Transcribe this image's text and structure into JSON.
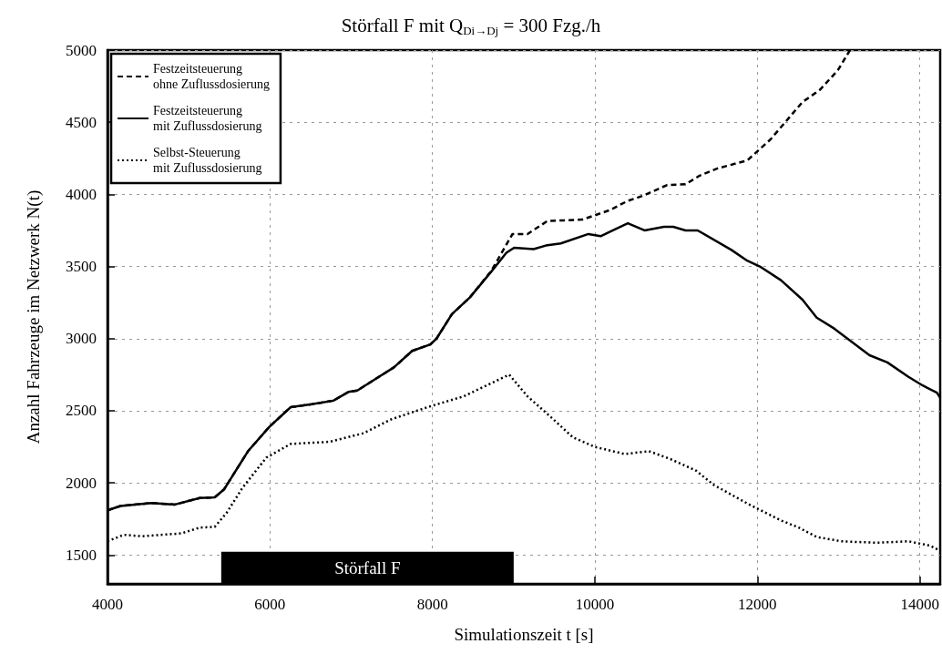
{
  "chart_data": {
    "type": "line",
    "title": "Störfall F mit Q$_{Di→Dj}$ = 300 Fzg./h",
    "xlabel": "Simulationszeit t [s]",
    "ylabel": "Anzahl Fahrzeuge im Netzwerk N(t)",
    "xlim": [
      4000,
      14250
    ],
    "xticks": [
      4000,
      6000,
      8000,
      10000,
      12000,
      14000
    ],
    "ylim": [
      1300,
      5000
    ],
    "yticks": [
      1500,
      2000,
      2500,
      3000,
      3500,
      4000,
      4500,
      5000
    ],
    "grid": true,
    "legend": "top left",
    "marker": "none",
    "bands": [
      {
        "axis": "x",
        "from": 5400,
        "to": 9000,
        "label": "Störfall F",
        "color": "#000000"
      }
    ],
    "series": [
      {
        "name": "Festzeitsteuerung\nohne Zuflussdosierung",
        "color": "#000000",
        "line_style": "dashed",
        "x": [
          4000,
          4160,
          4540,
          4830,
          5135,
          5320,
          5435,
          5730,
          5995,
          6255,
          6515,
          6780,
          6965,
          7075,
          7340,
          7525,
          7750,
          7975,
          8050,
          8240,
          8460,
          8725,
          8985,
          9170,
          9415,
          9620,
          9845,
          10180,
          10405,
          10590,
          10890,
          11115,
          11290,
          11510,
          11875,
          12160,
          12555,
          12770,
          12990,
          13140
        ],
        "values": [
          1810,
          1840,
          1860,
          1850,
          1895,
          1900,
          1955,
          2220,
          2390,
          2525,
          2545,
          2570,
          2630,
          2640,
          2735,
          2800,
          2915,
          2960,
          3000,
          3170,
          3285,
          3470,
          3725,
          3725,
          3815,
          3820,
          3825,
          3890,
          3955,
          3990,
          4065,
          4070,
          4130,
          4180,
          4235,
          4380,
          4640,
          4725,
          4860,
          5000
        ]
      },
      {
        "name": "Festzeitsteuerung\nmit Zuflussdosierung",
        "color": "#000000",
        "line_style": "solid",
        "x": [
          4000,
          4160,
          4540,
          4830,
          5135,
          5320,
          5435,
          5730,
          5995,
          6255,
          6515,
          6780,
          6965,
          7075,
          7340,
          7525,
          7750,
          7975,
          8050,
          8240,
          8460,
          8725,
          8910,
          9005,
          9245,
          9395,
          9580,
          9920,
          10070,
          10405,
          10610,
          10850,
          10965,
          11115,
          11265,
          11680,
          11875,
          12030,
          12290,
          12555,
          12730,
          12945,
          13380,
          13600,
          13860,
          14035,
          14210,
          14250
        ],
        "values": [
          1810,
          1840,
          1860,
          1850,
          1895,
          1900,
          1955,
          2220,
          2390,
          2525,
          2545,
          2570,
          2630,
          2640,
          2735,
          2800,
          2915,
          2960,
          3000,
          3170,
          3285,
          3465,
          3595,
          3630,
          3620,
          3645,
          3660,
          3725,
          3710,
          3800,
          3750,
          3775,
          3775,
          3750,
          3750,
          3615,
          3540,
          3500,
          3405,
          3270,
          3145,
          3070,
          2885,
          2835,
          2735,
          2675,
          2625,
          2590
        ]
      },
      {
        "name": "Selbst-Steuerung\nmit Zuflussdosierung",
        "color": "#000000",
        "line_style": "dotted",
        "x": [
          4000,
          4200,
          4425,
          4910,
          5135,
          5320,
          5470,
          5660,
          5955,
          6255,
          6740,
          7155,
          7490,
          7940,
          8385,
          8945,
          9170,
          9470,
          9730,
          9995,
          10365,
          10665,
          10930,
          11245,
          11465,
          11900,
          12290,
          12510,
          12730,
          13035,
          13470,
          13860,
          14125,
          14250
        ],
        "values": [
          1595,
          1640,
          1630,
          1650,
          1690,
          1695,
          1795,
          1965,
          2175,
          2270,
          2285,
          2345,
          2440,
          2525,
          2600,
          2750,
          2600,
          2450,
          2315,
          2250,
          2200,
          2220,
          2165,
          2085,
          1985,
          1850,
          1740,
          1690,
          1625,
          1595,
          1585,
          1595,
          1565,
          1530
        ]
      }
    ]
  }
}
